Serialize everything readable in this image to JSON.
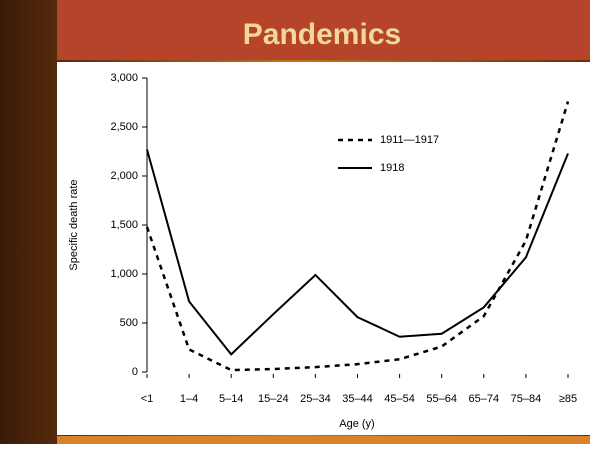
{
  "title": "Pandemics",
  "chart_data": {
    "type": "line",
    "xlabel": "Age (y)",
    "ylabel": "Specific death rate",
    "categories": [
      "<1",
      "1–4",
      "5–14",
      "15–24",
      "25–34",
      "35–44",
      "45–54",
      "55–64",
      "65–74",
      "75–84",
      "≥85"
    ],
    "series": [
      {
        "name": "1911—1917",
        "color": "#000000",
        "dash": true,
        "values": [
          1480,
          230,
          20,
          30,
          50,
          80,
          130,
          260,
          570,
          1340,
          2760
        ]
      },
      {
        "name": "1918",
        "color": "#000000",
        "dash": false,
        "values": [
          2270,
          720,
          180,
          590,
          990,
          560,
          360,
          390,
          660,
          1170,
          2230
        ]
      }
    ],
    "ylim": [
      0,
      3000
    ],
    "yticks": [
      0,
      500,
      {
        "value": 1000,
        "label": "1,000"
      },
      {
        "value": 1500,
        "label": "1,500"
      },
      {
        "value": 2000,
        "label": "2,000"
      },
      {
        "value": 2500,
        "label": "2,500"
      },
      {
        "value": 3000,
        "label": "3,000"
      }
    ],
    "legend": "upper-center"
  }
}
